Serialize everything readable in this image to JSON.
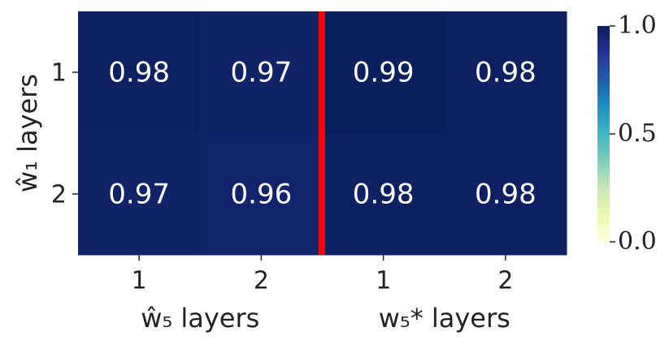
{
  "chart_data": {
    "type": "heatmap",
    "categories": [
      "1",
      "2",
      "1",
      "2"
    ],
    "y_categories": [
      "1",
      "2"
    ],
    "x_groups": [
      "ŵ₅ layers",
      "w₅* layers"
    ],
    "ylabel": "ŵ₁ layers",
    "values": [
      [
        0.98,
        0.97,
        0.99,
        0.98
      ],
      [
        0.97,
        0.96,
        0.98,
        0.98
      ]
    ],
    "colormap": "YlGnBu",
    "clim": [
      0,
      1
    ],
    "cticks": [
      {
        "value": 0,
        "label": "0.0"
      },
      {
        "value": 0.5,
        "label": "0.5"
      },
      {
        "value": 1,
        "label": "1.0"
      }
    ]
  }
}
